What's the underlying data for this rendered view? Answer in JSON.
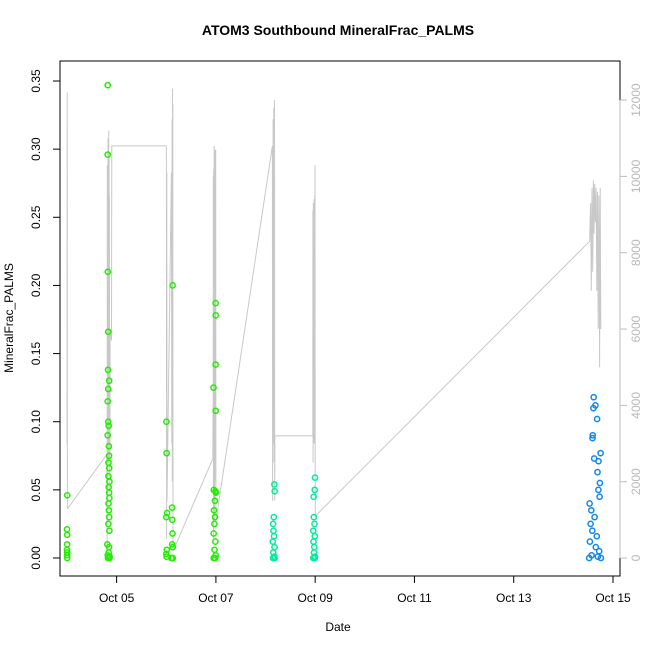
{
  "chart_data": {
    "type": "scatter",
    "title": "ATOM3 Southbound MineralFrac_PALMS",
    "xlabel": "Date",
    "ylabel": "MineralFrac_PALMS",
    "xlim": [
      "2016-10-04T00:00",
      "2016-10-15T00:00"
    ],
    "ylim": [
      0,
      0.35
    ],
    "y_ticks": [
      0.0,
      0.05,
      0.1,
      0.15,
      0.2,
      0.25,
      0.3,
      0.35
    ],
    "y_tick_labels": [
      "0.00",
      "0.05",
      "0.10",
      "0.15",
      "0.20",
      "0.25",
      "0.30",
      "0.35"
    ],
    "x_ticks": [
      "2016-10-05",
      "2016-10-07",
      "2016-10-09",
      "2016-10-11",
      "2016-10-13",
      "2016-10-15"
    ],
    "x_tick_labels": [
      "Oct 05",
      "Oct 07",
      "Oct 09",
      "Oct 11",
      "Oct 13",
      "Oct 15"
    ],
    "secondary_axis": {
      "side": "right",
      "color": "#bdbdbd",
      "ylim": [
        0,
        12500
      ],
      "ticks": [
        0,
        2000,
        4000,
        6000,
        8000,
        10000,
        12000
      ],
      "tick_labels": [
        "0",
        "2000",
        "4000",
        "6000",
        "8000",
        "10000",
        "12000"
      ]
    },
    "grid": false,
    "legend": "none",
    "point_series": [
      {
        "color": "#22ee00",
        "points": [
          [
            "2016-10-04T00:07",
            0.046
          ],
          [
            "2016-10-04T00:00",
            0.021
          ],
          [
            "2016-10-04T00:05",
            0.017
          ],
          [
            "2016-10-04T00:02",
            0.01
          ],
          [
            "2016-10-04T00:01",
            0.006
          ],
          [
            "2016-10-04T00:06",
            0.004
          ],
          [
            "2016-10-04T00:03",
            0.002
          ],
          [
            "2016-10-04T00:06",
            0.0
          ],
          [
            "2016-10-04T19:40",
            0.347
          ],
          [
            "2016-10-04T19:40",
            0.296
          ],
          [
            "2016-10-04T19:45",
            0.21
          ],
          [
            "2016-10-04T19:55",
            0.166
          ],
          [
            "2016-10-04T19:50",
            0.138
          ],
          [
            "2016-10-04T20:25",
            0.13
          ],
          [
            "2016-10-04T19:55",
            0.124
          ],
          [
            "2016-10-04T19:40",
            0.115
          ],
          [
            "2016-10-04T19:55",
            0.1
          ],
          [
            "2016-10-04T20:10",
            0.097
          ],
          [
            "2016-10-04T19:40",
            0.09
          ],
          [
            "2016-10-04T20:15",
            0.082
          ],
          [
            "2016-10-04T20:20",
            0.075
          ],
          [
            "2016-10-04T20:05",
            0.07
          ],
          [
            "2016-10-04T20:25",
            0.066
          ],
          [
            "2016-10-04T20:00",
            0.06
          ],
          [
            "2016-10-04T20:30",
            0.056
          ],
          [
            "2016-10-04T20:10",
            0.052
          ],
          [
            "2016-10-04T20:20",
            0.048
          ],
          [
            "2016-10-04T20:30",
            0.044
          ],
          [
            "2016-10-04T20:05",
            0.04
          ],
          [
            "2016-10-04T20:15",
            0.035
          ],
          [
            "2016-10-04T20:25",
            0.03
          ],
          [
            "2016-10-04T20:00",
            0.025
          ],
          [
            "2016-10-04T20:30",
            0.02
          ],
          [
            "2016-10-04T19:30",
            0.01
          ],
          [
            "2016-10-04T20:20",
            0.008
          ],
          [
            "2016-10-04T20:10",
            0.004
          ],
          [
            "2016-10-04T19:40",
            0.002
          ],
          [
            "2016-10-04T20:35",
            0.001
          ],
          [
            "2016-10-04T19:50",
            0.0
          ],
          [
            "2016-10-04T20:30",
            0.0
          ],
          [
            "2016-10-06T00:05",
            0.1
          ],
          [
            "2016-10-06T00:10",
            0.077
          ],
          [
            "2016-10-06T03:05",
            0.2
          ],
          [
            "2016-10-06T02:50",
            0.037
          ],
          [
            "2016-10-06T00:20",
            0.033
          ],
          [
            "2016-10-06T00:00",
            0.03
          ],
          [
            "2016-10-06T02:55",
            0.028
          ],
          [
            "2016-10-06T03:00",
            0.018
          ],
          [
            "2016-10-06T02:50",
            0.01
          ],
          [
            "2016-10-06T03:10",
            0.008
          ],
          [
            "2016-10-06T00:15",
            0.006
          ],
          [
            "2016-10-06T00:00",
            0.003
          ],
          [
            "2016-10-06T00:10",
            0.001
          ],
          [
            "2016-10-06T02:30",
            0.0
          ],
          [
            "2016-10-06T03:10",
            0.0
          ],
          [
            "2016-10-06T22:50",
            0.125
          ],
          [
            "2016-10-06T23:50",
            0.187
          ],
          [
            "2016-10-06T23:55",
            0.178
          ],
          [
            "2016-10-06T23:50",
            0.142
          ],
          [
            "2016-10-06T23:55",
            0.108
          ],
          [
            "2016-10-06T23:00",
            0.05
          ],
          [
            "2016-10-06T23:45",
            0.049
          ],
          [
            "2016-10-07T00:00",
            0.048
          ],
          [
            "2016-10-06T23:30",
            0.042
          ],
          [
            "2016-10-06T23:05",
            0.035
          ],
          [
            "2016-10-06T23:35",
            0.03
          ],
          [
            "2016-10-06T23:15",
            0.025
          ],
          [
            "2016-10-06T22:55",
            0.018
          ],
          [
            "2016-10-06T23:45",
            0.012
          ],
          [
            "2016-10-06T23:20",
            0.006
          ],
          [
            "2016-10-06T23:55",
            0.002
          ],
          [
            "2016-10-06T22:55",
            0.0
          ],
          [
            "2016-10-06T23:40",
            0.0
          ]
        ]
      },
      {
        "color": "#00ee99",
        "points": [
          [
            "2016-10-08T04:15",
            0.054
          ],
          [
            "2016-10-08T04:25",
            0.049
          ],
          [
            "2016-10-08T04:00",
            0.03
          ],
          [
            "2016-10-08T03:40",
            0.025
          ],
          [
            "2016-10-08T03:50",
            0.02
          ],
          [
            "2016-10-08T04:05",
            0.016
          ],
          [
            "2016-10-08T03:30",
            0.012
          ],
          [
            "2016-10-08T04:20",
            0.008
          ],
          [
            "2016-10-08T03:45",
            0.004
          ],
          [
            "2016-10-08T04:10",
            0.001
          ],
          [
            "2016-10-08T03:35",
            0.0
          ],
          [
            "2016-10-08T04:25",
            0.0
          ],
          [
            "2016-10-08T23:55",
            0.059
          ],
          [
            "2016-10-08T23:45",
            0.05
          ],
          [
            "2016-10-08T23:15",
            0.045
          ],
          [
            "2016-10-08T23:20",
            0.03
          ],
          [
            "2016-10-08T23:40",
            0.025
          ],
          [
            "2016-10-08T23:05",
            0.02
          ],
          [
            "2016-10-08T23:50",
            0.016
          ],
          [
            "2016-10-08T23:10",
            0.012
          ],
          [
            "2016-10-08T23:35",
            0.008
          ],
          [
            "2016-10-08T23:25",
            0.004
          ],
          [
            "2016-10-08T23:55",
            0.001
          ],
          [
            "2016-10-08T23:05",
            0.0
          ],
          [
            "2016-10-08T23:45",
            0.0
          ]
        ]
      },
      {
        "color": "#1188ee",
        "points": [
          [
            "2016-10-14T14:40",
            0.118
          ],
          [
            "2016-10-14T15:30",
            0.112
          ],
          [
            "2016-10-14T16:20",
            0.102
          ],
          [
            "2016-10-14T14:30",
            0.11
          ],
          [
            "2016-10-14T14:10",
            0.09
          ],
          [
            "2016-10-14T14:05",
            0.088
          ],
          [
            "2016-10-14T18:00",
            0.077
          ],
          [
            "2016-10-14T14:55",
            0.073
          ],
          [
            "2016-10-14T17:00",
            0.071
          ],
          [
            "2016-10-14T16:30",
            0.063
          ],
          [
            "2016-10-14T17:40",
            0.055
          ],
          [
            "2016-10-14T16:55",
            0.05
          ],
          [
            "2016-10-14T17:30",
            0.045
          ],
          [
            "2016-10-14T12:40",
            0.04
          ],
          [
            "2016-10-14T13:30",
            0.035
          ],
          [
            "2016-10-14T15:05",
            0.03
          ],
          [
            "2016-10-14T13:10",
            0.025
          ],
          [
            "2016-10-14T14:00",
            0.02
          ],
          [
            "2016-10-14T16:10",
            0.016
          ],
          [
            "2016-10-14T12:50",
            0.012
          ],
          [
            "2016-10-14T15:40",
            0.008
          ],
          [
            "2016-10-14T17:20",
            0.005
          ],
          [
            "2016-10-14T13:40",
            0.002
          ],
          [
            "2016-10-14T16:40",
            0.001
          ],
          [
            "2016-10-14T12:30",
            0.0
          ],
          [
            "2016-10-14T18:10",
            0.0
          ]
        ]
      }
    ],
    "line_series": {
      "color": "#c8c8c8",
      "axis": "right",
      "points": [
        [
          "2016-10-04T00:00",
          3000
        ],
        [
          "2016-10-04T00:05",
          12200
        ],
        [
          "2016-10-04T00:08",
          9000
        ],
        [
          "2016-10-04T00:10",
          5800
        ],
        [
          "2016-10-04T00:12",
          1300
        ],
        [
          "2016-10-04T00:20",
          1300
        ],
        [
          "2016-10-04T19:05",
          2700
        ],
        [
          "2016-10-04T19:15",
          2700
        ],
        [
          "2016-10-04T19:25",
          200
        ],
        [
          "2016-10-04T19:30",
          10300
        ],
        [
          "2016-10-04T19:35",
          1500
        ],
        [
          "2016-10-04T19:40",
          10200
        ],
        [
          "2016-10-04T19:45",
          4000
        ],
        [
          "2016-10-04T19:50",
          11000
        ],
        [
          "2016-10-04T19:55",
          2500
        ],
        [
          "2016-10-04T20:00",
          10800
        ],
        [
          "2016-10-04T20:05",
          6000
        ],
        [
          "2016-10-04T20:10",
          11200
        ],
        [
          "2016-10-04T20:15",
          3500
        ],
        [
          "2016-10-04T20:20",
          10500
        ],
        [
          "2016-10-04T20:25",
          1800
        ],
        [
          "2016-10-04T20:30",
          9500
        ],
        [
          "2016-10-04T20:35",
          2600
        ],
        [
          "2016-10-04T20:40",
          2700
        ],
        [
          "2016-10-04T20:45",
          2600
        ],
        [
          "2016-10-04T20:50",
          5800
        ],
        [
          "2016-10-04T21:00",
          6000
        ],
        [
          "2016-10-04T21:10",
          5900
        ],
        [
          "2016-10-04T21:20",
          5800
        ],
        [
          "2016-10-04T21:30",
          5700
        ],
        [
          "2016-10-04T21:40",
          10800
        ],
        [
          "2016-10-06T00:00",
          10800
        ],
        [
          "2016-10-06T00:05",
          10400
        ],
        [
          "2016-10-06T00:10",
          500
        ],
        [
          "2016-10-06T00:15",
          10100
        ],
        [
          "2016-10-06T00:20",
          1500
        ],
        [
          "2016-10-06T02:30",
          10100
        ],
        [
          "2016-10-06T02:40",
          3000
        ],
        [
          "2016-10-06T02:50",
          11500
        ],
        [
          "2016-10-06T02:55",
          2000
        ],
        [
          "2016-10-06T03:00",
          12300
        ],
        [
          "2016-10-06T03:05",
          5000
        ],
        [
          "2016-10-06T03:10",
          11900
        ],
        [
          "2016-10-06T03:15",
          200
        ],
        [
          "2016-10-06T03:25",
          200
        ],
        [
          "2016-10-06T22:30",
          2600
        ],
        [
          "2016-10-06T22:35",
          4000
        ],
        [
          "2016-10-06T22:40",
          2600
        ],
        [
          "2016-10-06T22:45",
          10000
        ],
        [
          "2016-10-06T22:50",
          500
        ],
        [
          "2016-10-06T22:55",
          10200
        ],
        [
          "2016-10-06T23:00",
          1500
        ],
        [
          "2016-10-06T23:10",
          10800
        ],
        [
          "2016-10-06T23:20",
          1000
        ],
        [
          "2016-10-06T23:30",
          10700
        ],
        [
          "2016-10-06T23:40",
          3000
        ],
        [
          "2016-10-06T23:45",
          10600
        ],
        [
          "2016-10-06T23:50",
          2000
        ],
        [
          "2016-10-06T23:55",
          10700
        ],
        [
          "2016-10-07T00:00",
          1100
        ],
        [
          "2016-10-07T00:05",
          1000
        ],
        [
          "2016-10-08T03:20",
          10800
        ],
        [
          "2016-10-08T03:25",
          1500
        ],
        [
          "2016-10-08T03:30",
          10700
        ],
        [
          "2016-10-08T03:35",
          3000
        ],
        [
          "2016-10-08T03:40",
          11500
        ],
        [
          "2016-10-08T03:50",
          4500
        ],
        [
          "2016-10-08T04:00",
          11800
        ],
        [
          "2016-10-08T04:05",
          2500
        ],
        [
          "2016-10-08T04:10",
          11600
        ],
        [
          "2016-10-08T04:15",
          4000
        ],
        [
          "2016-10-08T04:20",
          12000
        ],
        [
          "2016-10-08T04:25",
          1500
        ],
        [
          "2016-10-08T04:30",
          3200
        ],
        [
          "2016-10-08T22:50",
          3200
        ],
        [
          "2016-10-08T22:55",
          9100
        ],
        [
          "2016-10-08T23:00",
          2500
        ],
        [
          "2016-10-08T23:05",
          9300
        ],
        [
          "2016-10-08T23:15",
          3000
        ],
        [
          "2016-10-08T23:25",
          9400
        ],
        [
          "2016-10-08T23:35",
          3000
        ],
        [
          "2016-10-08T23:45",
          9500
        ],
        [
          "2016-10-08T23:50",
          5000
        ],
        [
          "2016-10-08T23:55",
          10300
        ],
        [
          "2016-10-09T00:00",
          1500
        ],
        [
          "2016-10-09T00:05",
          1100
        ],
        [
          "2016-10-14T12:40",
          8300
        ],
        [
          "2016-10-14T13:10",
          9300
        ],
        [
          "2016-10-14T13:30",
          7000
        ],
        [
          "2016-10-14T13:50",
          9700
        ],
        [
          "2016-10-14T14:10",
          7500
        ],
        [
          "2016-10-14T14:30",
          9900
        ],
        [
          "2016-10-14T14:50",
          8500
        ],
        [
          "2016-10-14T15:10",
          9800
        ],
        [
          "2016-10-14T15:30",
          8800
        ],
        [
          "2016-10-14T15:50",
          9700
        ],
        [
          "2016-10-14T16:10",
          7000
        ],
        [
          "2016-10-14T16:30",
          9600
        ],
        [
          "2016-10-14T16:50",
          6000
        ],
        [
          "2016-10-14T17:10",
          9500
        ],
        [
          "2016-10-14T17:30",
          5000
        ],
        [
          "2016-10-14T17:50",
          9700
        ],
        [
          "2016-10-14T18:05",
          6000
        ]
      ]
    }
  }
}
